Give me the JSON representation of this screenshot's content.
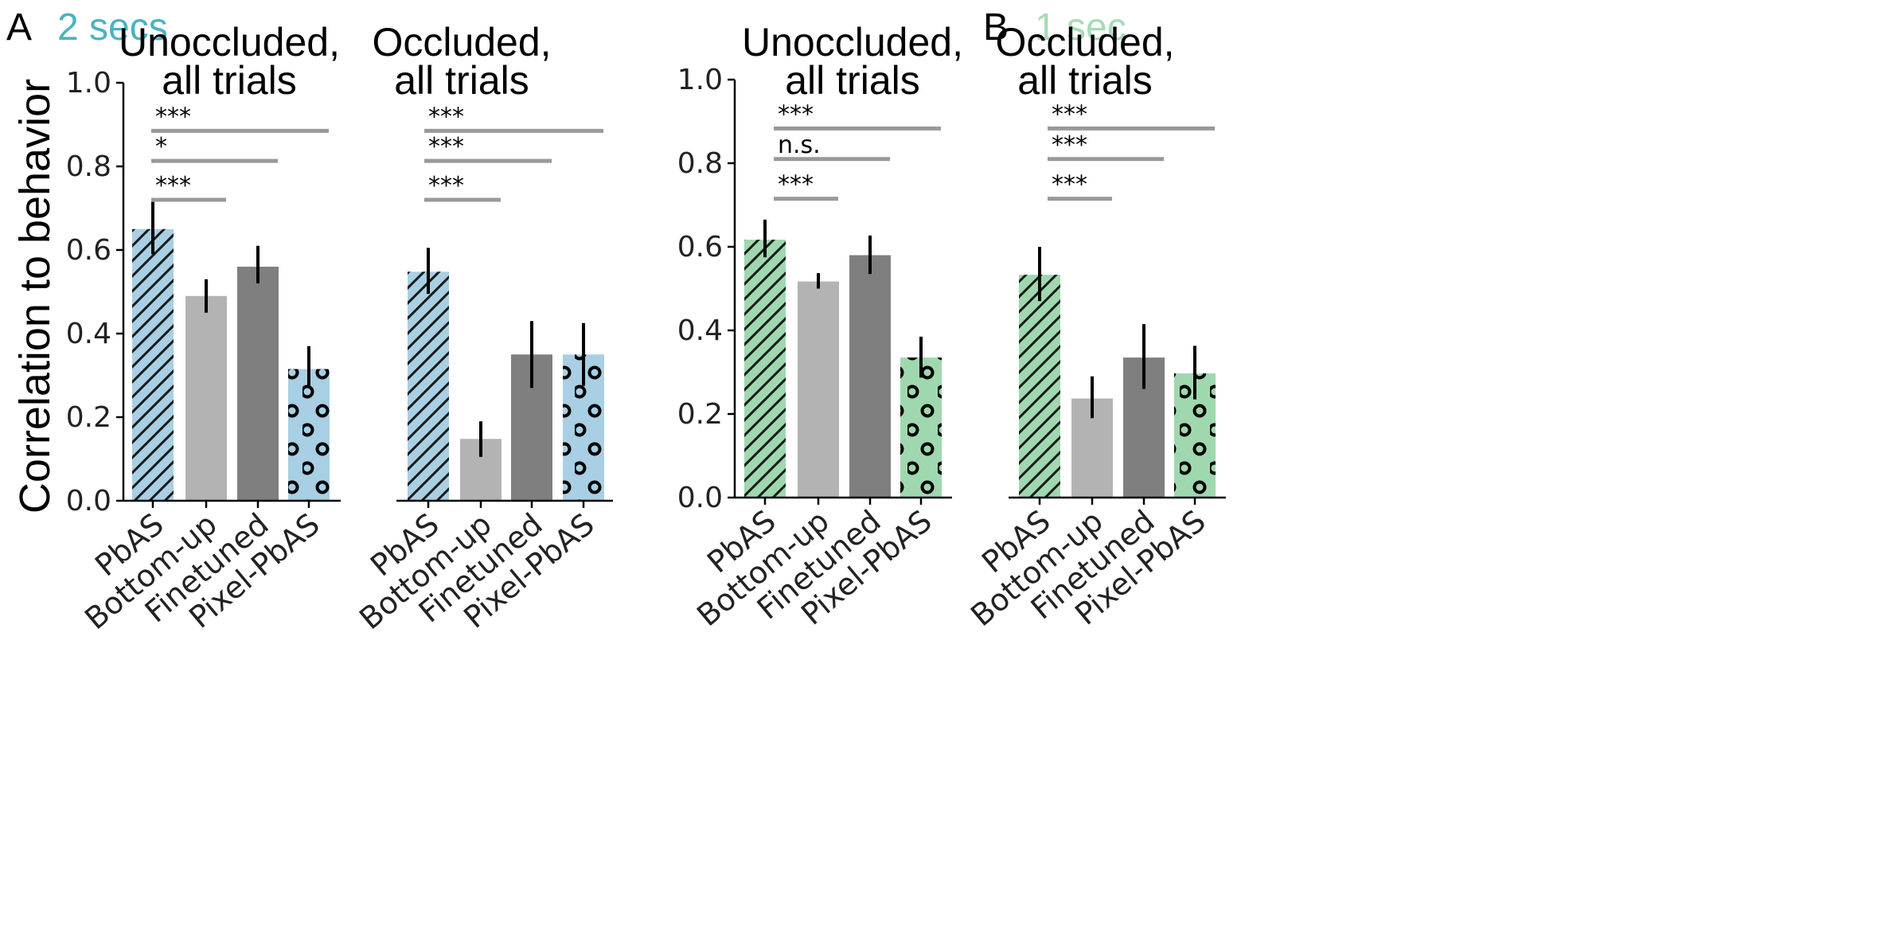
{
  "y_axis_label": "Correlation to behavior",
  "categories": [
    "PbAS",
    "Bottom-up",
    "Finetuned",
    "Pixel-PbAS"
  ],
  "y_ticks": [
    "0.0",
    "0.2",
    "0.4",
    "0.6",
    "0.8",
    "1.0"
  ],
  "panels": [
    {
      "letter": "A",
      "condition": "2 secs",
      "color": "#a8cfe3",
      "condition_color": "#4bb3c0"
    },
    {
      "letter": "B",
      "condition": "1 sec",
      "color": "#9fd8ae",
      "condition_color": "#a6dbb8"
    }
  ],
  "colors": {
    "bottom_up": "#b3b3b3",
    "finetuned": "#7f7f7f",
    "sig_line": "#999999",
    "error_bar": "#000000"
  },
  "chart_data": [
    {
      "type": "bar",
      "panel": "A",
      "condition": "2 secs",
      "title": "Unoccluded,\nall trials",
      "categories": [
        "PbAS",
        "Bottom-up",
        "Finetuned",
        "Pixel-PbAS"
      ],
      "values": [
        0.65,
        0.49,
        0.56,
        0.315
      ],
      "errors_low": [
        0.59,
        0.45,
        0.52,
        0.27
      ],
      "errors_high": [
        0.715,
        0.53,
        0.61,
        0.37
      ],
      "ylabel": "Correlation to behavior",
      "ylim": [
        0,
        1.0
      ],
      "significance": [
        {
          "label": "***",
          "compare": [
            "PbAS",
            "Pixel-PbAS"
          ],
          "y": 0.885
        },
        {
          "label": "*",
          "compare": [
            "PbAS",
            "Finetuned"
          ],
          "y": 0.813
        },
        {
          "label": "***",
          "compare": [
            "PbAS",
            "Bottom-up"
          ],
          "y": 0.72
        }
      ]
    },
    {
      "type": "bar",
      "panel": "A",
      "condition": "2 secs",
      "title": "Occluded,\nall trials",
      "categories": [
        "PbAS",
        "Bottom-up",
        "Finetuned",
        "Pixel-PbAS"
      ],
      "values": [
        0.548,
        0.148,
        0.35,
        0.35
      ],
      "errors_low": [
        0.495,
        0.105,
        0.27,
        0.275
      ],
      "errors_high": [
        0.605,
        0.19,
        0.43,
        0.425
      ],
      "ylabel": "",
      "ylim": [
        0,
        1.0
      ],
      "significance": [
        {
          "label": "***",
          "compare": [
            "PbAS",
            "Pixel-PbAS"
          ],
          "y": 0.885
        },
        {
          "label": "***",
          "compare": [
            "PbAS",
            "Finetuned"
          ],
          "y": 0.813
        },
        {
          "label": "***",
          "compare": [
            "PbAS",
            "Bottom-up"
          ],
          "y": 0.72
        }
      ]
    },
    {
      "type": "bar",
      "panel": "B",
      "condition": "1 sec",
      "title": "Unoccluded,\nall trials",
      "categories": [
        "PbAS",
        "Bottom-up",
        "Finetuned",
        "Pixel-PbAS"
      ],
      "values": [
        0.617,
        0.517,
        0.58,
        0.335
      ],
      "errors_low": [
        0.575,
        0.5,
        0.535,
        0.287
      ],
      "errors_high": [
        0.665,
        0.537,
        0.627,
        0.385
      ],
      "ylabel": "",
      "ylim": [
        0,
        1.0
      ],
      "significance": [
        {
          "label": "***",
          "compare": [
            "PbAS",
            "Pixel-PbAS"
          ],
          "y": 0.883
        },
        {
          "label": "n.s.",
          "compare": [
            "PbAS",
            "Finetuned"
          ],
          "y": 0.81
        },
        {
          "label": "***",
          "compare": [
            "PbAS",
            "Bottom-up"
          ],
          "y": 0.715
        }
      ]
    },
    {
      "type": "bar",
      "panel": "B",
      "condition": "1 sec",
      "title": "Occluded,\nall trials",
      "categories": [
        "PbAS",
        "Bottom-up",
        "Finetuned",
        "Pixel-PbAS"
      ],
      "values": [
        0.533,
        0.237,
        0.335,
        0.297
      ],
      "errors_low": [
        0.47,
        0.19,
        0.26,
        0.235
      ],
      "errors_high": [
        0.6,
        0.29,
        0.415,
        0.363
      ],
      "ylabel": "",
      "ylim": [
        0,
        1.0
      ],
      "significance": [
        {
          "label": "***",
          "compare": [
            "PbAS",
            "Pixel-PbAS"
          ],
          "y": 0.883
        },
        {
          "label": "***",
          "compare": [
            "PbAS",
            "Finetuned"
          ],
          "y": 0.81
        },
        {
          "label": "***",
          "compare": [
            "PbAS",
            "Bottom-up"
          ],
          "y": 0.715
        }
      ]
    }
  ]
}
